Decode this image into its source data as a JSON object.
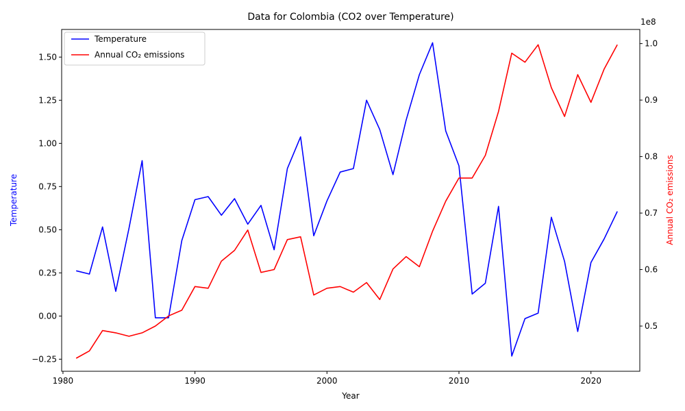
{
  "chart_data": {
    "type": "line",
    "title": "Data for Colombia (CO2 over Temperature)",
    "xlabel": "Year",
    "x_ticks": [
      1980,
      1990,
      2000,
      2010,
      2020
    ],
    "xlim": [
      1979.9,
      2023.7
    ],
    "left_axis": {
      "label": "Temperature",
      "color": "#0000ff",
      "ylim": [
        -0.32,
        1.66
      ],
      "ticks": [
        -0.25,
        0.0,
        0.25,
        0.5,
        0.75,
        1.0,
        1.25,
        1.5
      ],
      "tick_labels": [
        "−0.25",
        "0.00",
        "0.25",
        "0.50",
        "0.75",
        "1.00",
        "1.25",
        "1.50"
      ]
    },
    "right_axis": {
      "label": "Annual CO₂ emissions",
      "color": "#ff0000",
      "ylim": [
        0.42,
        1.025
      ],
      "ticks": [
        0.5,
        0.6,
        0.7,
        0.8,
        0.9,
        1.0
      ],
      "tick_labels": [
        "0.5",
        "0.6",
        "0.7",
        "0.8",
        "0.9",
        "1.0"
      ],
      "offset_text": "1e8"
    },
    "legend": {
      "position": "top-left",
      "entries": [
        "Temperature",
        "Annual CO₂ emissions"
      ]
    },
    "x": [
      1981,
      1982,
      1983,
      1984,
      1985,
      1986,
      1987,
      1988,
      1989,
      1990,
      1991,
      1992,
      1993,
      1994,
      1995,
      1996,
      1997,
      1998,
      1999,
      2000,
      2001,
      2002,
      2003,
      2004,
      2005,
      2006,
      2007,
      2008,
      2009,
      2010,
      2011,
      2012,
      2013,
      2014,
      2015,
      2016,
      2017,
      2018,
      2019,
      2020,
      2021,
      2022
    ],
    "series": [
      {
        "name": "Temperature",
        "axis": "left",
        "color": "#0000ff",
        "values": [
          0.262,
          0.243,
          0.516,
          0.143,
          0.508,
          0.9,
          -0.01,
          -0.01,
          0.437,
          0.674,
          0.692,
          0.584,
          0.68,
          0.532,
          0.641,
          0.384,
          0.854,
          1.038,
          0.465,
          0.667,
          0.834,
          0.854,
          1.25,
          1.08,
          0.819,
          1.135,
          1.398,
          1.583,
          1.072,
          0.87,
          0.127,
          0.19,
          0.635,
          -0.232,
          -0.015,
          0.017,
          0.572,
          0.316,
          -0.09,
          0.31,
          0.447,
          0.606
        ]
      },
      {
        "name": "Annual CO₂ emissions",
        "axis": "right",
        "color": "#ff0000",
        "values": [
          0.443,
          0.456,
          0.492,
          0.488,
          0.482,
          0.488,
          0.5,
          0.518,
          0.528,
          0.57,
          0.567,
          0.615,
          0.634,
          0.67,
          0.595,
          0.6,
          0.653,
          0.658,
          0.555,
          0.567,
          0.57,
          0.56,
          0.577,
          0.547,
          0.601,
          0.623,
          0.605,
          0.668,
          0.721,
          0.762,
          0.762,
          0.802,
          0.88,
          0.983,
          0.967,
          0.998,
          0.922,
          0.871,
          0.945,
          0.896,
          0.955,
          0.998
        ]
      }
    ]
  }
}
